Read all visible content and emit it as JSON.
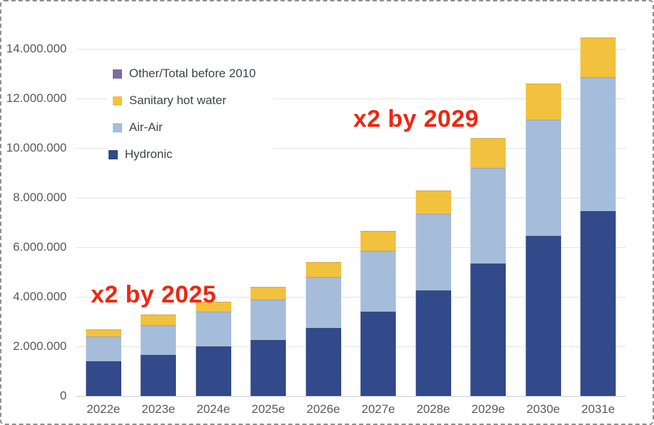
{
  "chart_data": {
    "type": "bar",
    "stacked": true,
    "title": "",
    "xlabel": "",
    "ylabel": "",
    "grid": true,
    "ylim": [
      0,
      14500000
    ],
    "categories": [
      "2022e",
      "2023e",
      "2024e",
      "2025e",
      "2026e",
      "2027e",
      "2028e",
      "2029e",
      "2030e",
      "2031e"
    ],
    "series": [
      {
        "name": "Hydronic",
        "color": "#32498A",
        "values": [
          1400000,
          1650000,
          2000000,
          2250000,
          2750000,
          3400000,
          4250000,
          5350000,
          6450000,
          7450000
        ]
      },
      {
        "name": "Air-Air",
        "color": "#A6BCDB",
        "values": [
          1000000,
          1200000,
          1400000,
          1650000,
          2050000,
          2450000,
          3100000,
          3850000,
          4700000,
          5400000
        ]
      },
      {
        "name": "Sanitary hot water",
        "color": "#F2C23E",
        "values": [
          300000,
          450000,
          400000,
          500000,
          600000,
          800000,
          950000,
          1200000,
          1450000,
          1600000
        ]
      },
      {
        "name": "Other/Total before 2010",
        "color": "#7D6BA3",
        "values": [
          0,
          0,
          0,
          0,
          0,
          0,
          0,
          0,
          0,
          0
        ]
      }
    ],
    "totals": [
      2700000,
      3300000,
      3800000,
      4400000,
      5400000,
      6650000,
      8300000,
      10400000,
      12600000,
      14450000
    ],
    "legend": {
      "position": "top-left-inside",
      "order": [
        "Other/Total before 2010",
        "Sanitary hot water",
        "Air-Air",
        "Hydronic"
      ]
    },
    "y_axis": {
      "ticks": [
        {
          "label": "0",
          "value": 0
        },
        {
          "label": "2.000.000",
          "value": 2000000
        },
        {
          "label": "4.000.000",
          "value": 4000000
        },
        {
          "label": "6.000.000",
          "value": 6000000
        },
        {
          "label": "8.000.000",
          "value": 8000000
        },
        {
          "label": "10.000.000",
          "value": 10000000
        },
        {
          "label": "12.000.000",
          "value": 12000000
        },
        {
          "label": "14.000.000",
          "value": 14000000
        }
      ]
    }
  },
  "annotations": [
    {
      "text": "x2 by 2025",
      "color": "#EC2713"
    },
    {
      "text": "x2 by 2029",
      "color": "#EC2713"
    }
  ],
  "colors": {
    "background": "#ffffff",
    "frame_border": "#8f8f8f",
    "gridline": "#e2e2e2",
    "axis_line": "#c9cdd4",
    "tick_text": "#595959",
    "legend_text": "#3f4150",
    "annotation_red": "#EC2713"
  }
}
